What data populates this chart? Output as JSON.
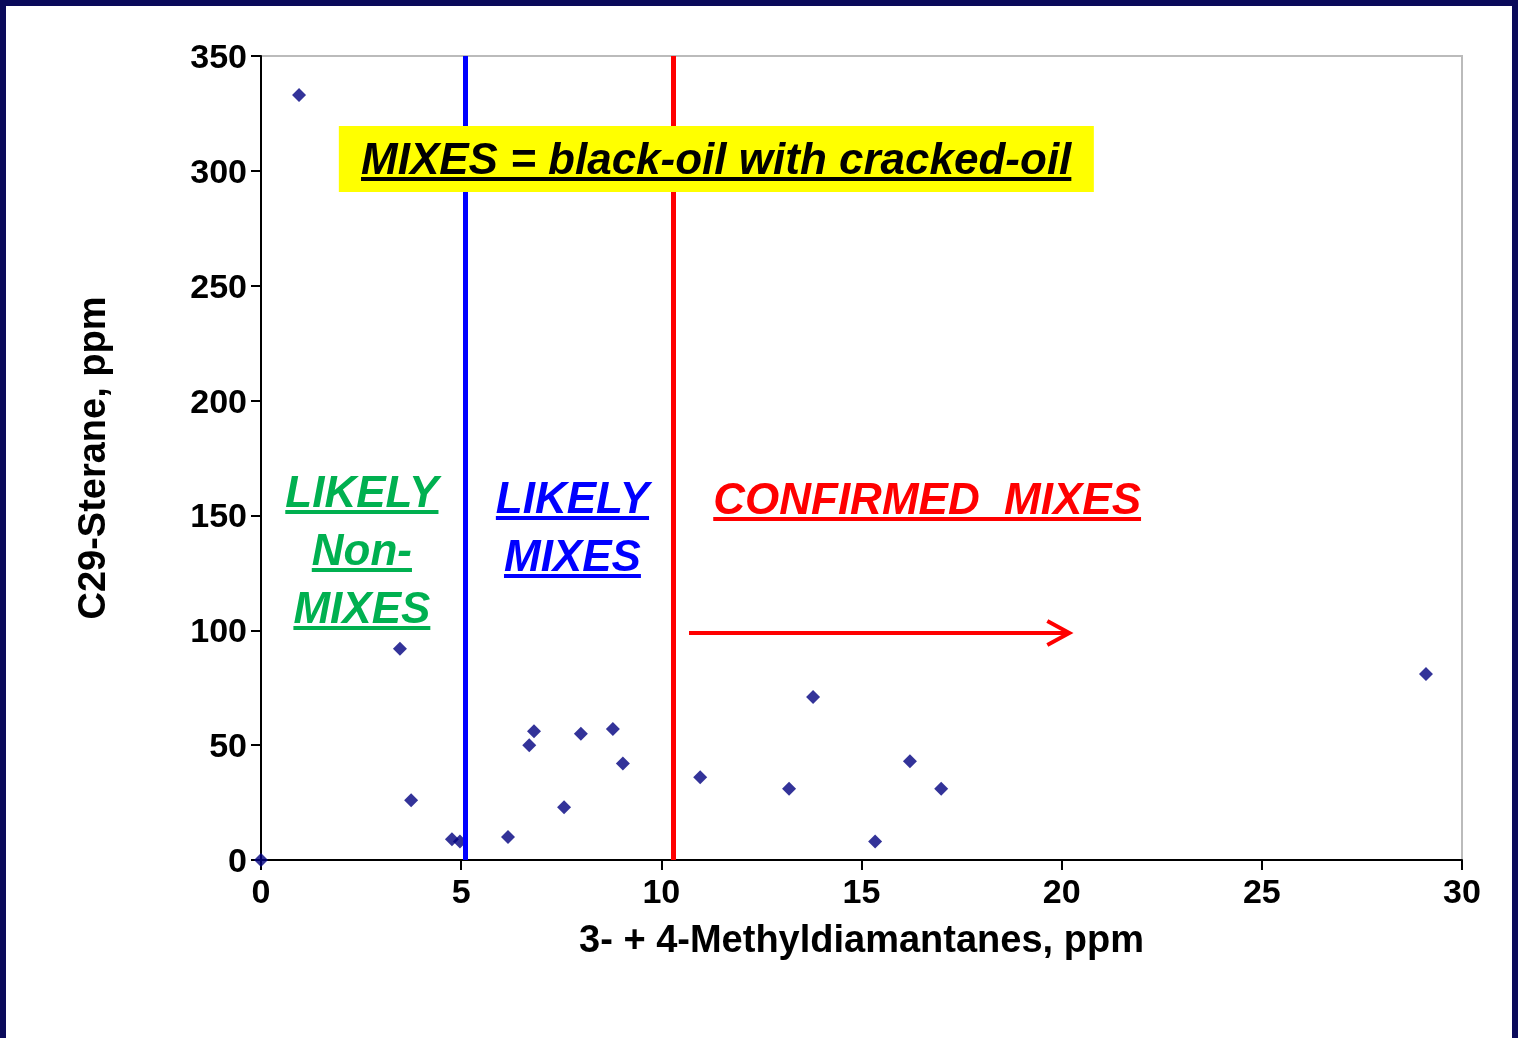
{
  "chart_data": {
    "type": "scatter",
    "xlabel": "3- + 4-Methyldiamantanes, ppm",
    "ylabel": "C29-Sterane, ppm",
    "x": [
      0,
      0.95,
      3.47,
      3.75,
      4.77,
      4.97,
      6.17,
      6.7,
      6.82,
      7.57,
      7.99,
      8.79,
      9.04,
      10.97,
      13.19,
      13.79,
      15.34,
      16.21,
      16.99,
      29.1
    ],
    "series": [
      {
        "color": "#00007f",
        "values": [
          0,
          333,
          92,
          26,
          9,
          8,
          10,
          50,
          56,
          23,
          55,
          57,
          42,
          36,
          31,
          71,
          8,
          43,
          31,
          81
        ]
      }
    ],
    "xlim": [
      0,
      30
    ],
    "xticks": [
      0,
      5,
      10,
      15,
      20,
      25,
      30
    ],
    "ylim": [
      0,
      350
    ],
    "yticks": [
      0,
      50,
      100,
      150,
      200,
      250,
      300,
      350
    ],
    "marker": "diamond",
    "grid": false,
    "ref_lines": [
      {
        "axis": "x",
        "value": 5.1,
        "color": "#0000ff"
      },
      {
        "axis": "x",
        "value": 10.3,
        "color": "#ff0000"
      }
    ],
    "annotations": [
      "MIXES = black-oil with cracked-oil",
      "LIKELY\nNon-\nMIXES",
      "LIKELY\nMIXES",
      "CONFIRMED  MIXES"
    ]
  }
}
